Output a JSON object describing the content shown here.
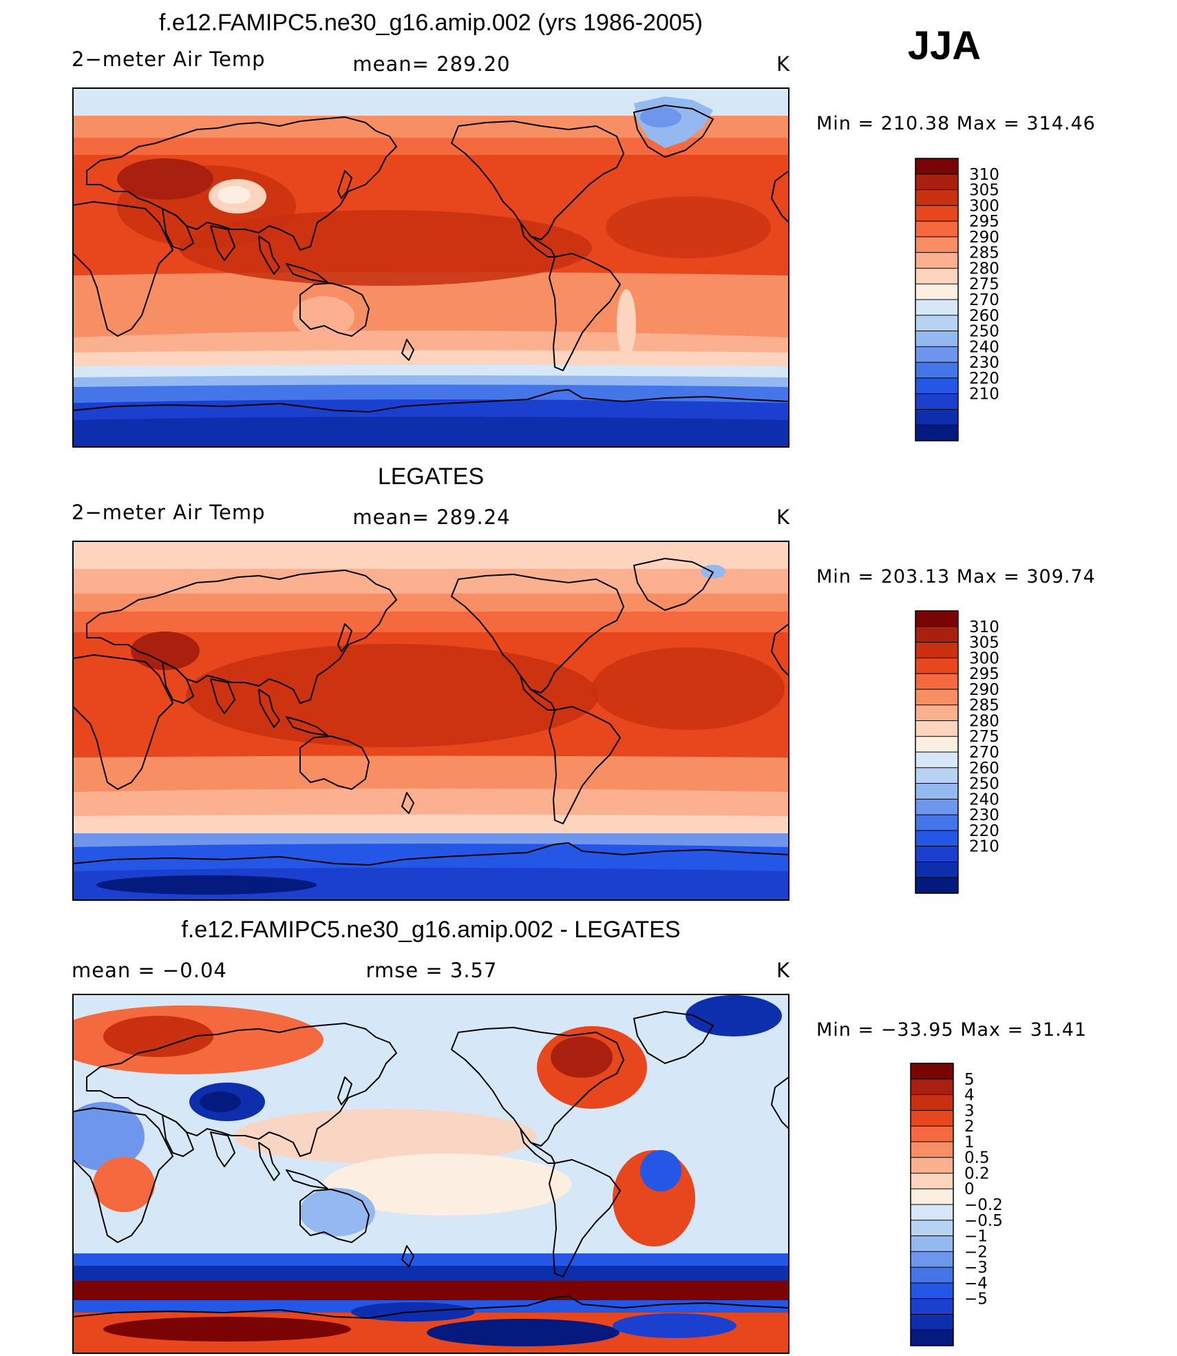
{
  "season": "JJA",
  "panels": [
    {
      "id": "model",
      "title": "f.e12.FAMIPC5.ne30_g16.amip.002 (yrs 1986-2005)",
      "left_label": "2−meter Air Temp",
      "center_label": "mean=  289.20",
      "units": "K",
      "minmax": "Min  =  210.38  Max  =  314.46"
    },
    {
      "id": "obs",
      "title": "LEGATES",
      "left_label": "2−meter Air Temp",
      "center_label": "mean=  289.24",
      "units": "K",
      "minmax": "Min  =  203.13  Max  =  309.74"
    },
    {
      "id": "diff",
      "title": "f.e12.FAMIPC5.ne30_g16.amip.002 - LEGATES",
      "left_label": "mean  =     −0.04",
      "center_label": "rmse  =      3.57",
      "units": "K",
      "minmax": "Min  =  −33.95  Max  =     31.41"
    }
  ],
  "chart_data": [
    {
      "type": "heatmap",
      "title": "f.e12.FAMIPC5.ne30_g16.amip.002 (yrs 1986-2005)",
      "variable": "2−meter Air Temp",
      "units": "K",
      "mean": 289.2,
      "min": 210.38,
      "max": 314.46,
      "levels": [
        310,
        305,
        300,
        295,
        290,
        285,
        280,
        275,
        270,
        260,
        250,
        240,
        230,
        220,
        210
      ],
      "level_labels": [
        "310",
        "305",
        "300",
        "295",
        "290",
        "285",
        "280",
        "275",
        "270",
        "260",
        "250",
        "240",
        "230",
        "220",
        "210"
      ],
      "colors": [
        "#7a0403",
        "#a9200e",
        "#c8300f",
        "#e8461c",
        "#f4693e",
        "#f88e64",
        "#fbb08f",
        "#fdd4bd",
        "#fdeee2",
        "#d6e8f8",
        "#b7d3f4",
        "#94b8f0",
        "#6d96ec",
        "#4476ea",
        "#2557e6",
        "#1b40d0",
        "#0e2fad",
        "#051a7e"
      ]
    },
    {
      "type": "heatmap",
      "title": "LEGATES",
      "variable": "2−meter Air Temp",
      "units": "K",
      "mean": 289.24,
      "min": 203.13,
      "max": 309.74,
      "levels": [
        310,
        305,
        300,
        295,
        290,
        285,
        280,
        275,
        270,
        260,
        250,
        240,
        230,
        220,
        210
      ],
      "level_labels": [
        "310",
        "305",
        "300",
        "295",
        "290",
        "285",
        "280",
        "275",
        "270",
        "260",
        "250",
        "240",
        "230",
        "220",
        "210"
      ],
      "colors": [
        "#7a0403",
        "#a9200e",
        "#c8300f",
        "#e8461c",
        "#f4693e",
        "#f88e64",
        "#fbb08f",
        "#fdd4bd",
        "#fdeee2",
        "#d6e8f8",
        "#b7d3f4",
        "#94b8f0",
        "#6d96ec",
        "#4476ea",
        "#2557e6",
        "#1b40d0",
        "#0e2fad",
        "#051a7e"
      ]
    },
    {
      "type": "heatmap",
      "title": "f.e12.FAMIPC5.ne30_g16.amip.002 - LEGATES",
      "units": "K",
      "mean": -0.04,
      "rmse": 3.57,
      "min": -33.95,
      "max": 31.41,
      "levels": [
        5,
        4,
        3,
        2,
        1,
        0.5,
        0.2,
        0,
        -0.2,
        -0.5,
        -1,
        -2,
        -3,
        -4,
        -5
      ],
      "level_labels": [
        "5",
        "4",
        "3",
        "2",
        "1",
        "0.5",
        "0.2",
        "0",
        "−0.2",
        "−0.5",
        "−1",
        "−2",
        "−3",
        "−4",
        "−5"
      ],
      "colors": [
        "#7a0403",
        "#a9200e",
        "#c8300f",
        "#e8461c",
        "#f4693e",
        "#f88e64",
        "#fbb08f",
        "#fdd4bd",
        "#fdeee2",
        "#d6e8f8",
        "#b7d3f4",
        "#94b8f0",
        "#6d96ec",
        "#4476ea",
        "#2557e6",
        "#1b40d0",
        "#0e2fad",
        "#051a7e"
      ]
    }
  ]
}
